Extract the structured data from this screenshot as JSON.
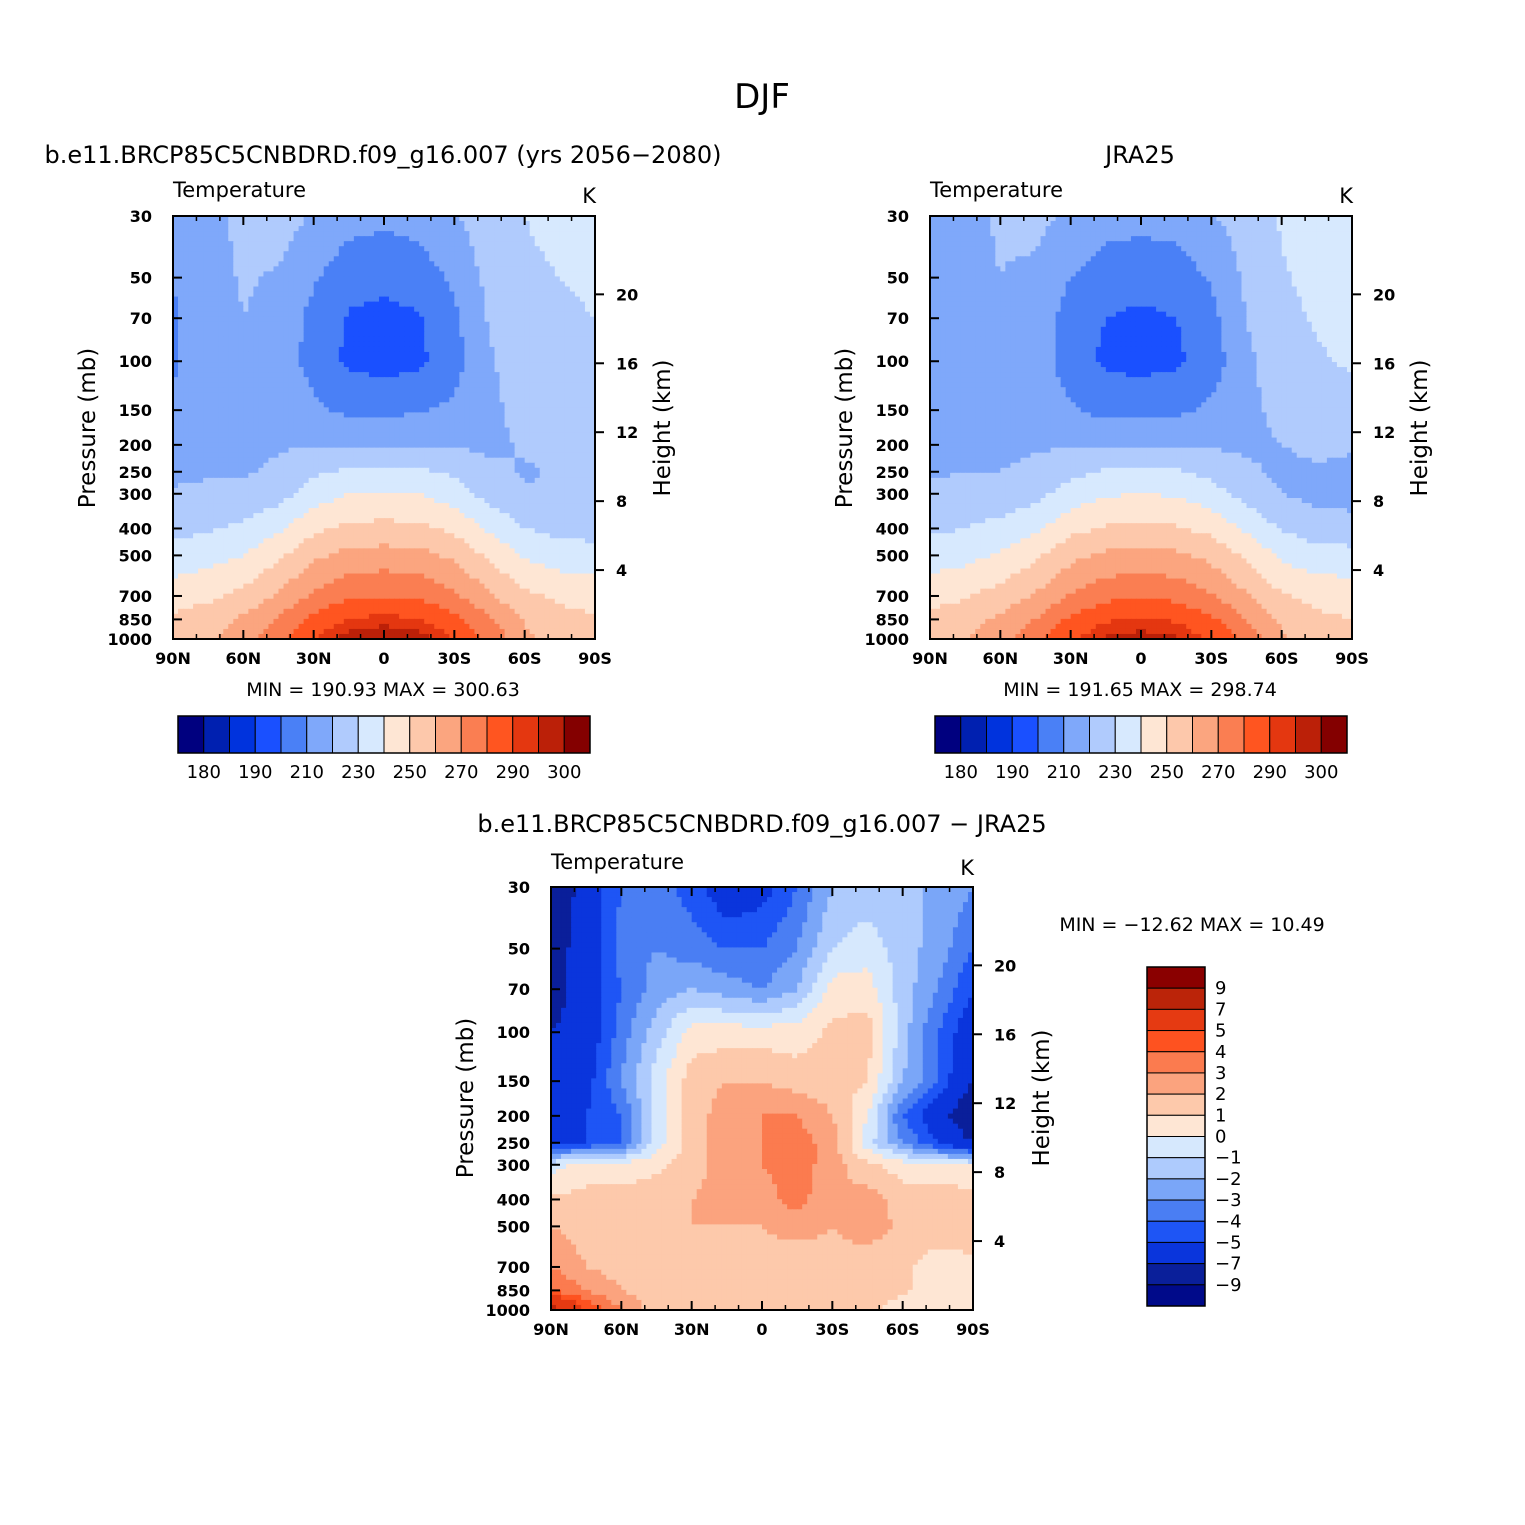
{
  "figure": {
    "title": "DJF",
    "diff_title": "b.e11.BRCP85C5CNBDRD.f09_g16.007 − JRA25"
  },
  "axes_text": {
    "panel_label": "Temperature",
    "units": "K",
    "ylabel": "Pressure (mb)",
    "y2label": "Height (km)"
  },
  "colors": {
    "abs_levels": [
      "#00007f",
      "#0020b0",
      "#0033dd",
      "#1a50ff",
      "#4a80f6",
      "#7fa8fa",
      "#b0cbfd",
      "#d7e9fe",
      "#fee6d4",
      "#fdc8ab",
      "#fba57f",
      "#fa7e52",
      "#ff5520",
      "#e43710",
      "#bb2008",
      "#840000"
    ],
    "diff_levels": [
      "#000a8a",
      "#0a1f9a",
      "#0a35dc",
      "#1e55f5",
      "#4a7ef3",
      "#7aa6f8",
      "#aecbfd",
      "#d6e8fd",
      "#fee6d4",
      "#fdc9ab",
      "#fba37e",
      "#fb7b4f",
      "#fe5220",
      "#e53a12",
      "#bb2409",
      "#8a0000"
    ]
  },
  "panels": [
    {
      "title": "b.e11.BRCP85C5CNBDRD.f09_g16.007 (yrs 2056−2080)",
      "minmax": "MIN = 190.93   MAX = 300.63"
    },
    {
      "title": "JRA25",
      "minmax": "MIN = 191.65   MAX = 298.74"
    },
    {
      "title": "",
      "minmax": "MIN = −12.62   MAX =   10.49"
    }
  ],
  "chart_data": [
    {
      "type": "heatmap",
      "title": "b.e11.BRCP85C5CNBDRD.f09_g16.007 (yrs 2056−2080)",
      "xlabel": "",
      "ylabel": "Pressure (mb)",
      "y2label": "Height (km)",
      "units": "K",
      "x_tick_labels": [
        "90N",
        "60N",
        "30N",
        "0",
        "30S",
        "60S",
        "90S"
      ],
      "x_values": [
        90,
        60,
        30,
        0,
        -30,
        -60,
        -90
      ],
      "y_ticks": [
        30,
        50,
        70,
        100,
        150,
        200,
        250,
        300,
        400,
        500,
        700,
        850,
        1000
      ],
      "y2_ticks": [
        4,
        8,
        12,
        16,
        20
      ],
      "ylim": [
        1000,
        30
      ],
      "y_scale": "log",
      "latitudes": [
        90,
        75,
        60,
        45,
        30,
        15,
        0,
        -15,
        -30,
        -45,
        -60,
        -75,
        -90
      ],
      "pressures": [
        30,
        50,
        70,
        100,
        150,
        200,
        250,
        300,
        400,
        500,
        700,
        850,
        1000
      ],
      "values": [
        [
          212,
          218,
          222,
          225,
          219,
          214,
          212,
          214,
          219,
          226,
          230,
          233,
          236
        ],
        [
          210,
          216,
          221,
          219,
          211,
          204,
          203,
          205,
          212,
          223,
          228,
          230,
          232
        ],
        [
          209,
          215,
          220,
          217,
          207,
          199,
          197,
          199,
          208,
          221,
          226,
          228,
          230
        ],
        [
          209,
          214,
          219,
          216,
          206,
          198,
          196,
          198,
          206,
          219,
          225,
          227,
          228
        ],
        [
          211,
          215,
          218,
          218,
          212,
          208,
          208,
          209,
          212,
          218,
          223,
          226,
          226
        ],
        [
          214,
          216,
          217,
          219,
          219,
          219,
          219,
          219,
          219,
          218,
          221,
          223,
          223
        ],
        [
          218,
          219,
          219,
          222,
          228,
          232,
          233,
          232,
          228,
          222,
          219,
          221,
          221
        ],
        [
          221,
          222,
          223,
          226,
          235,
          240,
          241,
          240,
          235,
          226,
          221,
          220,
          220
        ],
        [
          227,
          229,
          232,
          238,
          248,
          252,
          253,
          252,
          248,
          238,
          230,
          227,
          226
        ],
        [
          234,
          236,
          240,
          248,
          258,
          263,
          264,
          263,
          258,
          248,
          239,
          235,
          234
        ],
        [
          245,
          248,
          253,
          261,
          272,
          278,
          280,
          278,
          272,
          261,
          252,
          248,
          247
        ],
        [
          252,
          255,
          262,
          271,
          283,
          290,
          293,
          290,
          283,
          271,
          259,
          253,
          251
        ],
        [
          255,
          259,
          266,
          278,
          290,
          298,
          300,
          298,
          290,
          278,
          262,
          255,
          253
        ]
      ],
      "colorbar_labels": [
        "180",
        "190",
        "210",
        "230",
        "250",
        "270",
        "290",
        "300"
      ],
      "min": 190.93,
      "max": 300.63
    },
    {
      "type": "heatmap",
      "title": "JRA25",
      "xlabel": "",
      "ylabel": "Pressure (mb)",
      "y2label": "Height (km)",
      "units": "K",
      "x_tick_labels": [
        "90N",
        "60N",
        "30N",
        "0",
        "30S",
        "60S",
        "90S"
      ],
      "x_values": [
        90,
        60,
        30,
        0,
        -30,
        -60,
        -90
      ],
      "y_ticks": [
        30,
        50,
        70,
        100,
        150,
        200,
        250,
        300,
        400,
        500,
        700,
        850,
        1000
      ],
      "y2_ticks": [
        4,
        8,
        12,
        16,
        20
      ],
      "ylim": [
        1000,
        30
      ],
      "y_scale": "log",
      "latitudes": [
        90,
        75,
        60,
        45,
        30,
        15,
        0,
        -15,
        -30,
        -45,
        -60,
        -75,
        -90
      ],
      "pressures": [
        30,
        50,
        70,
        100,
        150,
        200,
        250,
        300,
        400,
        500,
        700,
        850,
        1000
      ],
      "values": [
        [
          214,
          218,
          221,
          223,
          218,
          214,
          213,
          214,
          219,
          225,
          231,
          235,
          238
        ],
        [
          212,
          217,
          220,
          218,
          210,
          205,
          204,
          205,
          211,
          222,
          229,
          233,
          235
        ],
        [
          211,
          216,
          219,
          216,
          206,
          200,
          198,
          200,
          207,
          220,
          227,
          231,
          233
        ],
        [
          210,
          215,
          218,
          215,
          205,
          198,
          197,
          198,
          205,
          218,
          226,
          229,
          231
        ],
        [
          212,
          215,
          218,
          218,
          211,
          207,
          207,
          208,
          212,
          217,
          223,
          226,
          227
        ],
        [
          215,
          217,
          218,
          219,
          219,
          218,
          218,
          218,
          219,
          218,
          220,
          222,
          221
        ],
        [
          219,
          220,
          220,
          222,
          227,
          231,
          232,
          231,
          227,
          222,
          218,
          219,
          218
        ],
        [
          222,
          223,
          224,
          227,
          234,
          239,
          240,
          239,
          234,
          226,
          220,
          217,
          216
        ],
        [
          228,
          230,
          233,
          238,
          247,
          251,
          252,
          251,
          247,
          238,
          229,
          225,
          224
        ],
        [
          235,
          237,
          241,
          248,
          257,
          262,
          263,
          262,
          257,
          248,
          238,
          234,
          233
        ],
        [
          246,
          249,
          254,
          261,
          271,
          277,
          279,
          277,
          271,
          261,
          251,
          247,
          246
        ],
        [
          253,
          256,
          262,
          270,
          282,
          289,
          291,
          289,
          282,
          270,
          258,
          252,
          250
        ],
        [
          256,
          260,
          266,
          277,
          289,
          296,
          298,
          296,
          289,
          277,
          261,
          254,
          252
        ]
      ],
      "colorbar_labels": [
        "180",
        "190",
        "210",
        "230",
        "250",
        "270",
        "290",
        "300"
      ],
      "min": 191.65,
      "max": 298.74
    },
    {
      "type": "heatmap",
      "title": "b.e11.BRCP85C5CNBDRD.f09_g16.007 − JRA25",
      "xlabel": "",
      "ylabel": "Pressure (mb)",
      "y2label": "Height (km)",
      "units": "K",
      "x_tick_labels": [
        "90N",
        "60N",
        "30N",
        "0",
        "30S",
        "60S",
        "90S"
      ],
      "x_values": [
        90,
        60,
        30,
        0,
        -30,
        -60,
        -90
      ],
      "y_ticks": [
        30,
        50,
        70,
        100,
        150,
        200,
        250,
        300,
        400,
        500,
        700,
        850,
        1000
      ],
      "y2_ticks": [
        4,
        8,
        12,
        16,
        20
      ],
      "ylim": [
        1000,
        30
      ],
      "y_scale": "log",
      "latitudes": [
        90,
        75,
        60,
        45,
        30,
        15,
        0,
        -15,
        -30,
        -45,
        -60,
        -75,
        -90
      ],
      "pressures": [
        30,
        50,
        70,
        100,
        150,
        200,
        250,
        300,
        400,
        500,
        700,
        850,
        1000
      ],
      "values": [
        [
          -9,
          -6,
          -4,
          -3.5,
          -4.5,
          -6,
          -5.5,
          -4,
          -2,
          -1.5,
          -2,
          -2,
          -3
        ],
        [
          -8,
          -6,
          -3.5,
          -3,
          -3.5,
          -4,
          -4,
          -3,
          -1,
          -0.5,
          -1.5,
          -2.5,
          -4
        ],
        [
          -8,
          -6,
          -4,
          -2.5,
          -2,
          -2.5,
          -3,
          -2,
          0.5,
          0.5,
          -1.5,
          -3,
          -5
        ],
        [
          -7,
          -6,
          -3.5,
          -1.5,
          0.5,
          0.5,
          0.5,
          0.5,
          1.2,
          1.5,
          -1.5,
          -4,
          -6
        ],
        [
          -6,
          -5.5,
          -3,
          -0.5,
          1.5,
          2,
          2,
          1.5,
          1.5,
          1,
          -2,
          -4,
          -7
        ],
        [
          -6,
          -5,
          -4,
          -0.5,
          1.5,
          2.5,
          3,
          3,
          2,
          0,
          -4,
          -6,
          -9
        ],
        [
          -5,
          -5,
          -4,
          -0.5,
          1.5,
          2.5,
          3,
          3.5,
          2.5,
          -0.5,
          -3,
          -5,
          -7
        ],
        [
          -0.5,
          0.5,
          0.5,
          0.8,
          1.5,
          2.5,
          3,
          3.5,
          2.5,
          1.2,
          0.5,
          0.3,
          0
        ],
        [
          1.2,
          1.3,
          1.3,
          1.5,
          2,
          2.5,
          2.5,
          3.5,
          2,
          2.5,
          1.5,
          1.5,
          1.5
        ],
        [
          2,
          1.5,
          1.5,
          1.5,
          2,
          2,
          2,
          2.5,
          2,
          2.5,
          1.8,
          1.5,
          2
        ],
        [
          3,
          2,
          1.5,
          1.5,
          1.5,
          1.5,
          1.5,
          1.2,
          1.5,
          1.5,
          1.2,
          0.5,
          0.5
        ],
        [
          4,
          3,
          2,
          1.5,
          1.5,
          1.3,
          1.5,
          1.5,
          1.5,
          1.5,
          1.2,
          0.5,
          0.5
        ],
        [
          8,
          5,
          3,
          1.5,
          1.5,
          1.3,
          1.3,
          1.3,
          1.3,
          1.3,
          0.5,
          0.5,
          0.5
        ]
      ],
      "colorbar_labels": [
        "9",
        "7",
        "5",
        "4",
        "3",
        "2",
        "1",
        "0",
        "−1",
        "−2",
        "−3",
        "−4",
        "−5",
        "−7",
        "−9"
      ],
      "min": -12.62,
      "max": 10.49
    }
  ]
}
